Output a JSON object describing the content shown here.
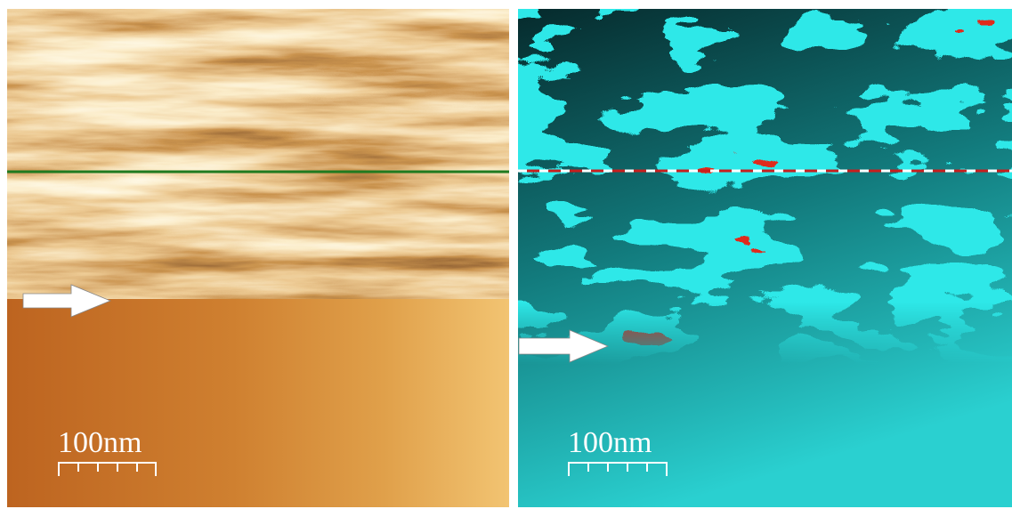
{
  "panels": [
    {
      "scale_label": "100nm"
    },
    {
      "scale_label": "100nm"
    }
  ]
}
